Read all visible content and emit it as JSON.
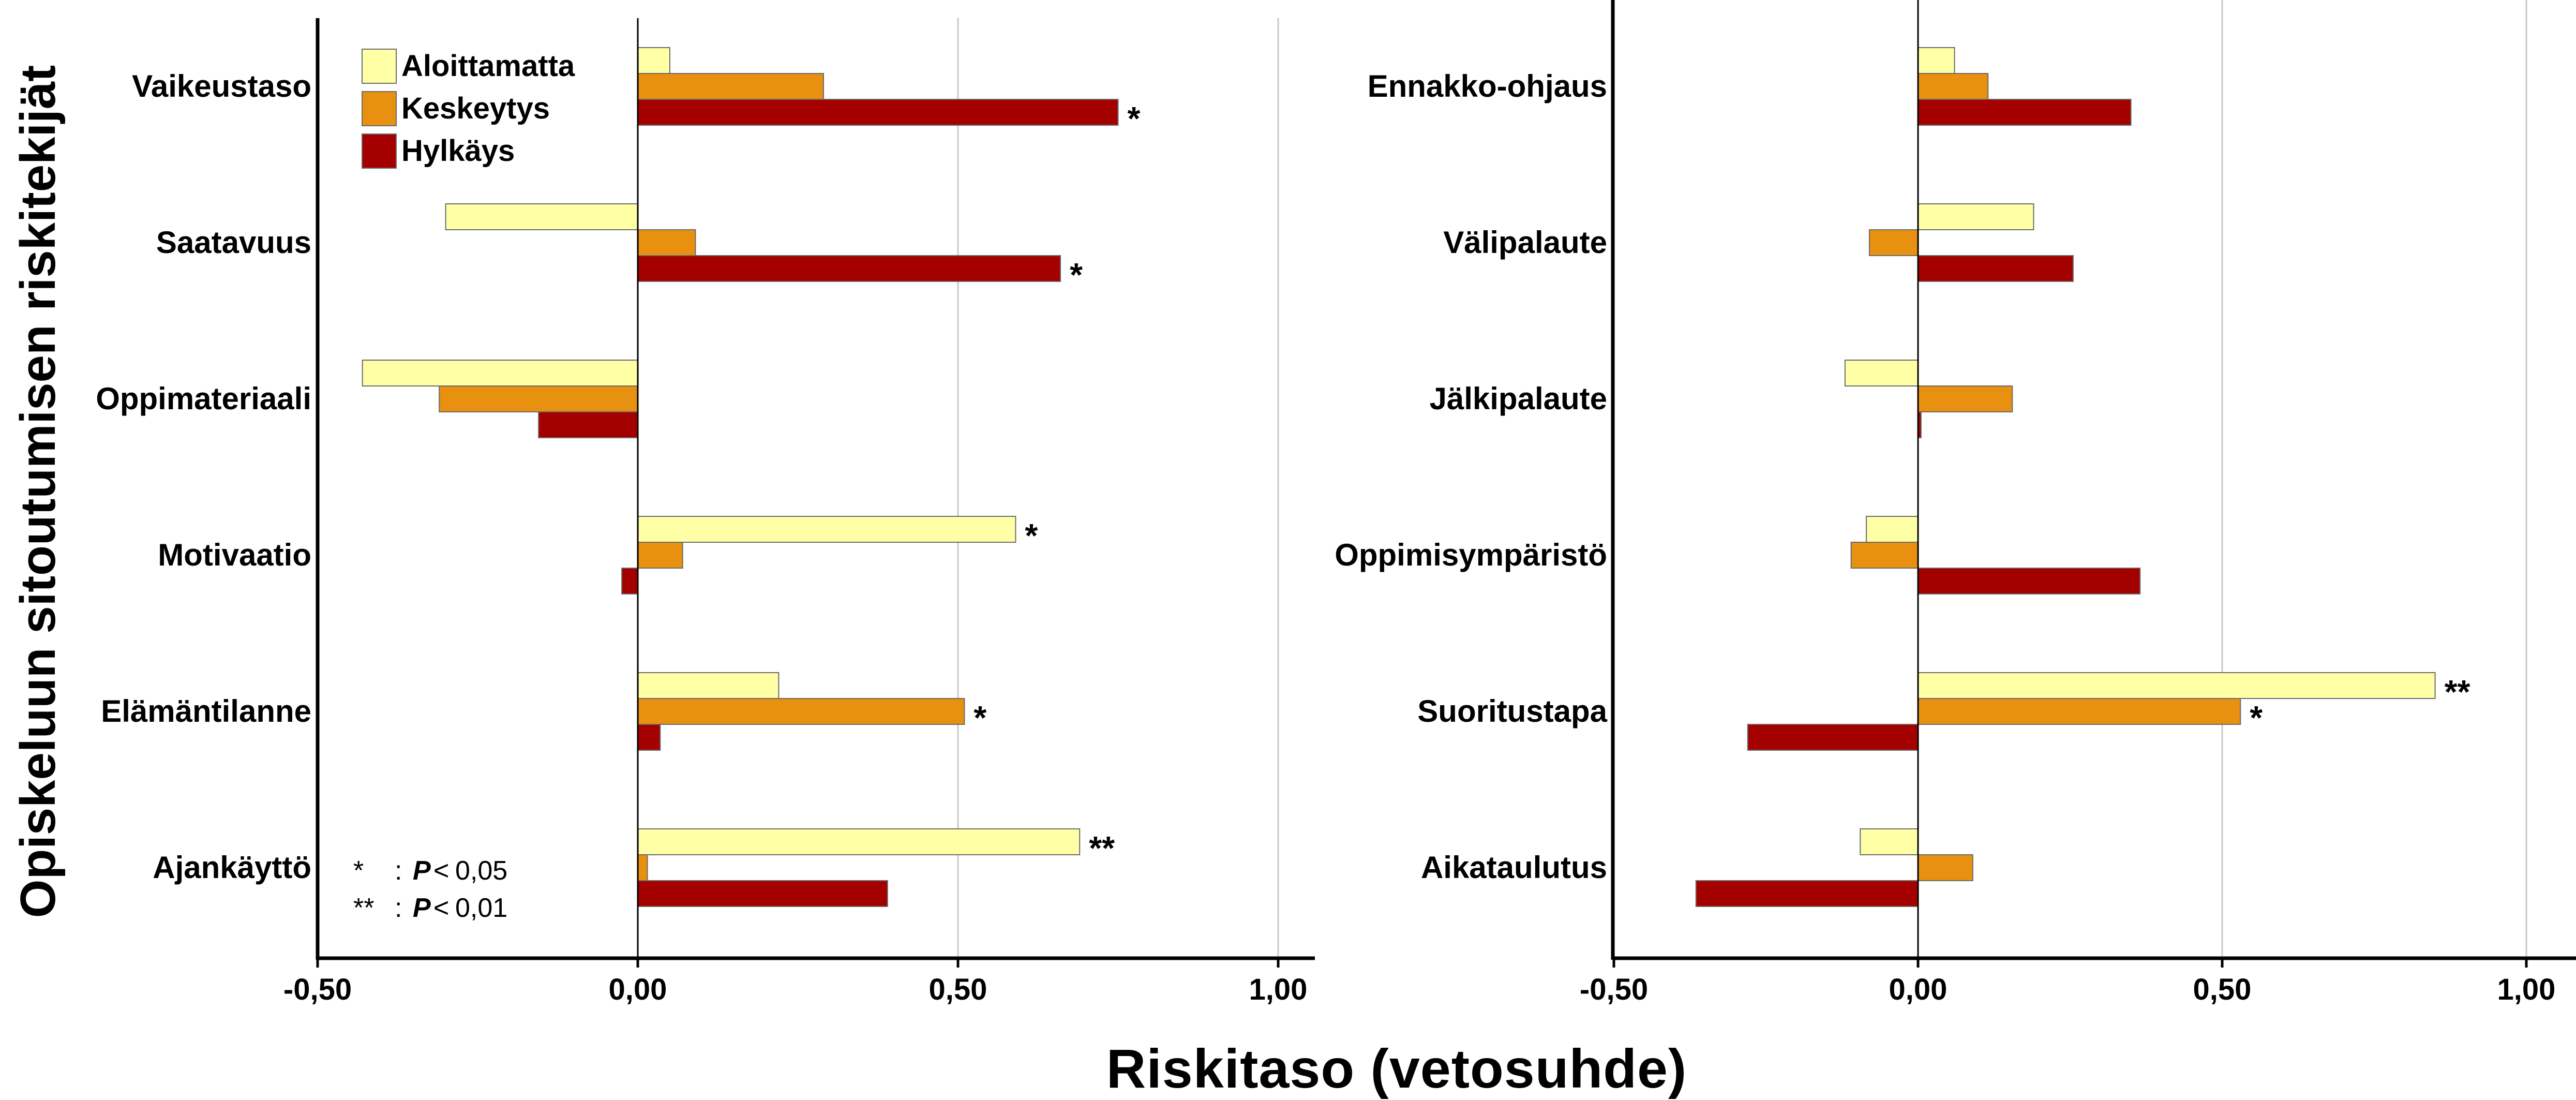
{
  "chart_data": {
    "type": "bar",
    "orientation": "horizontal",
    "xlabel": "Riskitaso (vetosuhde)",
    "ylabel": "Opiskeluun sitoutumisen riskitekijät",
    "xlim": [
      -0.5,
      1.0
    ],
    "xticks": [
      -0.5,
      0.0,
      0.5,
      1.0
    ],
    "xtick_labels": [
      "-0,50",
      "0,00",
      "0,50",
      "1,00"
    ],
    "grid": "vertical",
    "legend": {
      "placement": "top-left",
      "entries": [
        {
          "name": "Aloittamatta",
          "color": "#FFFFA6"
        },
        {
          "name": "Keskeytys",
          "color": "#E8900F"
        },
        {
          "name": "Hylkäys",
          "color": "#A50000"
        }
      ]
    },
    "significance_note": [
      {
        "symbol": "*",
        "sep": ":",
        "p": "P",
        "op": "<",
        "value": "0,05"
      },
      {
        "symbol": "**",
        "sep": ":",
        "p": "P",
        "op": "<",
        "value": "0,01"
      }
    ],
    "panels": [
      {
        "categories": [
          "Vaikeustaso",
          "Saatavuus",
          "Oppimateriaali",
          "Motivaatio",
          "Elämäntilanne",
          "Ajankäyttö"
        ],
        "series": [
          {
            "name": "Aloittamatta",
            "values": [
              0.05,
              -0.3,
              -0.43,
              0.59,
              0.22,
              0.69
            ],
            "marks": [
              "",
              "",
              "",
              "*",
              "",
              "**"
            ]
          },
          {
            "name": "Keskeytys",
            "values": [
              0.29,
              0.09,
              -0.31,
              0.07,
              0.51,
              0.015
            ],
            "marks": [
              "",
              "",
              "",
              "",
              "*",
              ""
            ]
          },
          {
            "name": "Hylkäys",
            "values": [
              0.75,
              0.66,
              -0.155,
              -0.025,
              0.035,
              0.39
            ],
            "marks": [
              "*",
              "*",
              "",
              "",
              "",
              ""
            ]
          }
        ]
      },
      {
        "categories": [
          "Ennakko-ohjaus",
          "Välipalaute",
          "Jälkipalaute",
          "Oppimisympäristö",
          "Suoritustapa",
          "Aikataulutus"
        ],
        "series": [
          {
            "name": "Aloittamatta",
            "values": [
              0.06,
              0.19,
              -0.12,
              -0.085,
              0.85,
              -0.095
            ],
            "marks": [
              "",
              "",
              "",
              "",
              "**",
              ""
            ]
          },
          {
            "name": "Keskeytys",
            "values": [
              0.115,
              -0.08,
              0.155,
              -0.11,
              0.53,
              0.09
            ],
            "marks": [
              "",
              "",
              "",
              "",
              "*",
              ""
            ]
          },
          {
            "name": "Hylkäys",
            "values": [
              0.35,
              0.255,
              0.005,
              0.365,
              -0.28,
              -0.365
            ],
            "marks": [
              "",
              "",
              "",
              "",
              "",
              ""
            ]
          }
        ]
      }
    ]
  }
}
